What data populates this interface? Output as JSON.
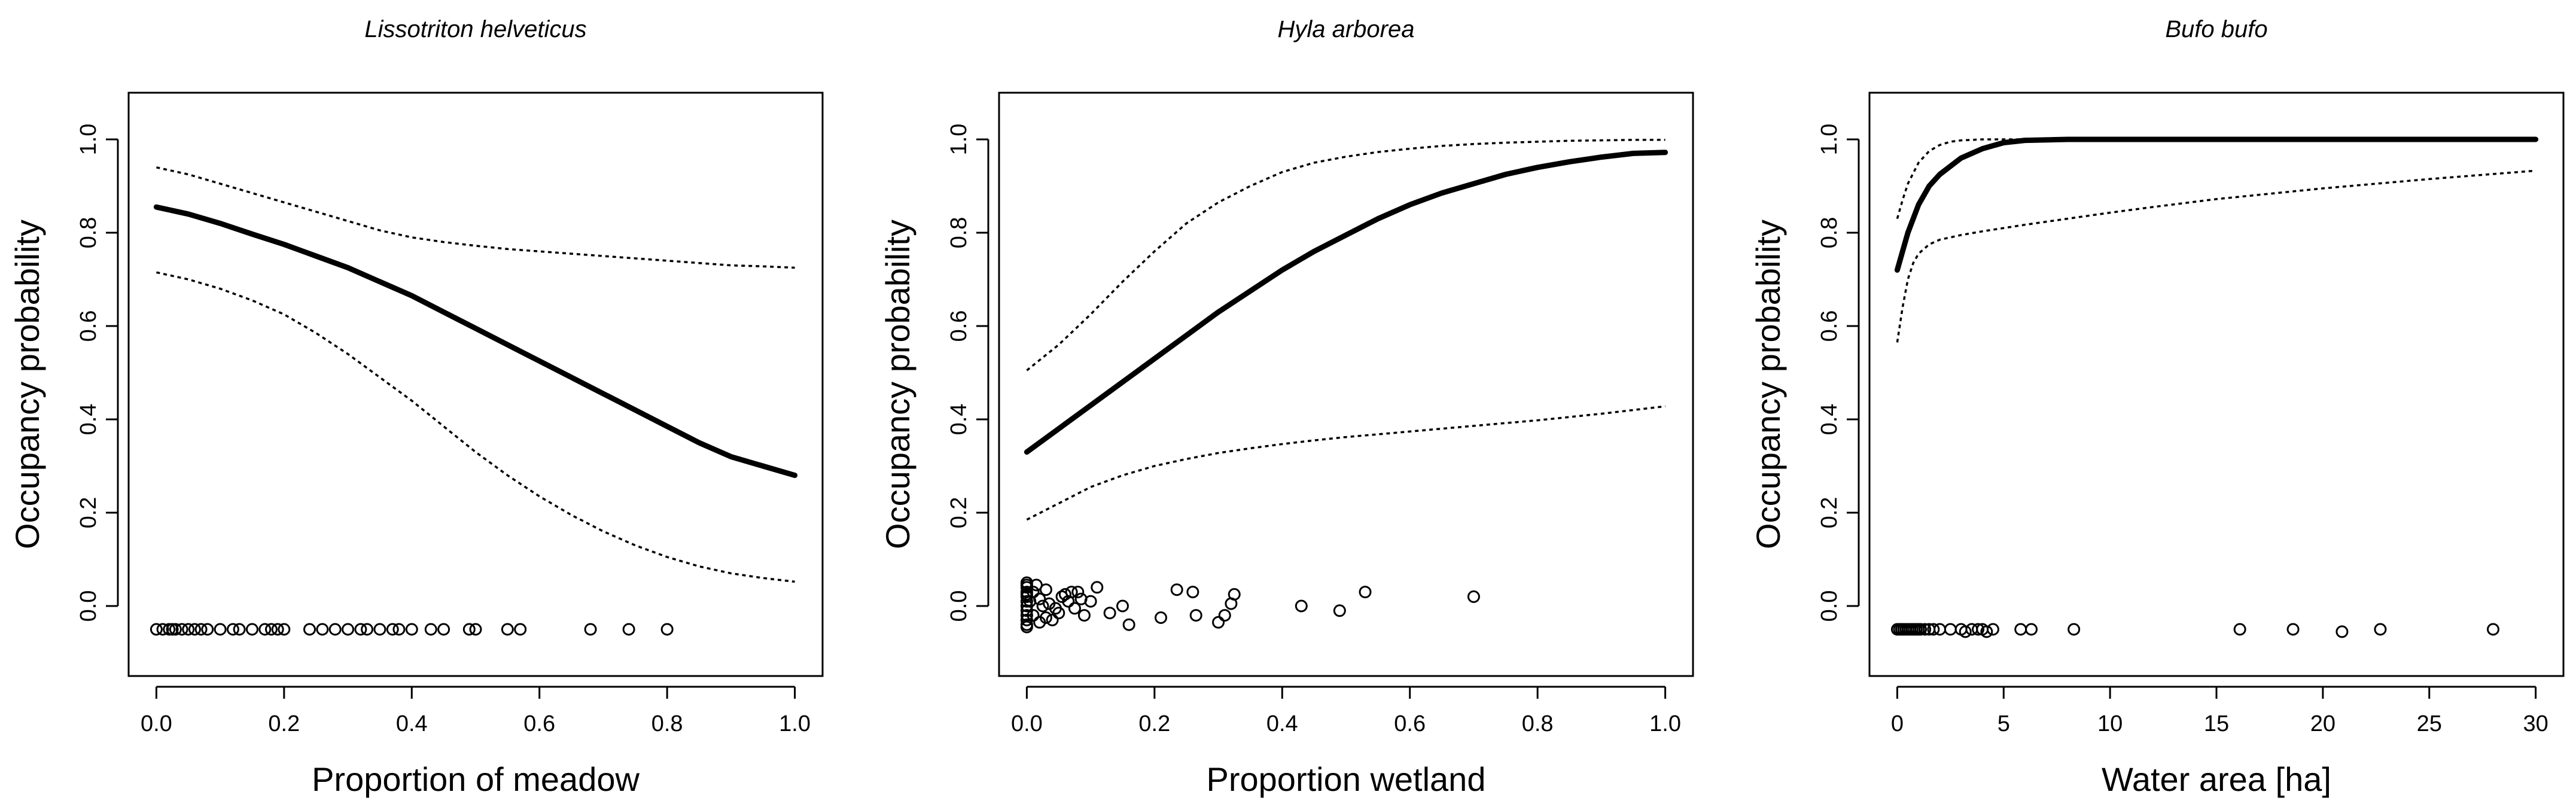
{
  "chart_data": [
    {
      "type": "line",
      "title": "Lissotriton helveticus",
      "xlabel": "Proportion of meadow",
      "ylabel": "Occupancy probability",
      "xlim": [
        0,
        1
      ],
      "ylim": [
        -0.1,
        1.05
      ],
      "xticks": [
        0,
        0.2,
        0.4,
        0.6,
        0.8,
        1
      ],
      "xtick_labels": [
        "0.0",
        "0.2",
        "0.4",
        "0.6",
        "0.8",
        "1.0"
      ],
      "yticks": [
        0,
        0.2,
        0.4,
        0.6,
        0.8,
        1
      ],
      "ytick_labels": [
        "0.0",
        "0.2",
        "0.4",
        "0.6",
        "0.8",
        "1.0"
      ],
      "series": [
        {
          "name": "fit",
          "style": "solid",
          "x": [
            0,
            0.05,
            0.1,
            0.15,
            0.2,
            0.25,
            0.3,
            0.35,
            0.4,
            0.45,
            0.5,
            0.55,
            0.6,
            0.65,
            0.7,
            0.75,
            0.8,
            0.85,
            0.9,
            0.95,
            1
          ],
          "y": [
            0.855,
            0.84,
            0.82,
            0.797,
            0.775,
            0.75,
            0.725,
            0.695,
            0.665,
            0.63,
            0.595,
            0.56,
            0.525,
            0.49,
            0.455,
            0.42,
            0.385,
            0.35,
            0.32,
            0.3,
            0.28
          ]
        },
        {
          "name": "upper 95% CI",
          "style": "dotted",
          "x": [
            0,
            0.05,
            0.1,
            0.15,
            0.2,
            0.25,
            0.3,
            0.35,
            0.4,
            0.45,
            0.5,
            0.55,
            0.6,
            0.65,
            0.7,
            0.75,
            0.8,
            0.85,
            0.9,
            0.95,
            1
          ],
          "y": [
            0.94,
            0.925,
            0.905,
            0.885,
            0.865,
            0.845,
            0.825,
            0.805,
            0.79,
            0.78,
            0.772,
            0.765,
            0.76,
            0.755,
            0.75,
            0.745,
            0.74,
            0.735,
            0.73,
            0.728,
            0.725
          ]
        },
        {
          "name": "lower 95% CI",
          "style": "dotted",
          "x": [
            0,
            0.05,
            0.1,
            0.15,
            0.2,
            0.25,
            0.3,
            0.35,
            0.4,
            0.45,
            0.5,
            0.55,
            0.6,
            0.65,
            0.7,
            0.75,
            0.8,
            0.85,
            0.9,
            0.95,
            1
          ],
          "y": [
            0.715,
            0.7,
            0.68,
            0.655,
            0.625,
            0.585,
            0.54,
            0.49,
            0.44,
            0.385,
            0.33,
            0.28,
            0.235,
            0.195,
            0.16,
            0.13,
            0.105,
            0.085,
            0.07,
            0.06,
            0.052
          ]
        }
      ],
      "points": {
        "name": "observations",
        "x": [
          0,
          0.01,
          0.02,
          0.025,
          0.03,
          0.04,
          0.05,
          0.06,
          0.07,
          0.08,
          0.1,
          0.12,
          0.13,
          0.15,
          0.17,
          0.18,
          0.19,
          0.2,
          0.24,
          0.26,
          0.28,
          0.3,
          0.32,
          0.33,
          0.35,
          0.37,
          0.38,
          0.4,
          0.43,
          0.45,
          0.49,
          0.5,
          0.55,
          0.57,
          0.68,
          0.74,
          0.8
        ],
        "y": [
          -0.05,
          -0.05,
          -0.05,
          -0.05,
          -0.05,
          -0.05,
          -0.05,
          -0.05,
          -0.05,
          -0.05,
          -0.05,
          -0.05,
          -0.05,
          -0.05,
          -0.05,
          -0.05,
          -0.05,
          -0.05,
          -0.05,
          -0.05,
          -0.05,
          -0.05,
          -0.05,
          -0.05,
          -0.05,
          -0.05,
          -0.05,
          -0.05,
          -0.05,
          -0.05,
          -0.05,
          -0.05,
          -0.05,
          -0.05,
          -0.05,
          -0.05,
          -0.05
        ]
      }
    },
    {
      "type": "line",
      "title": "Hyla arborea",
      "xlabel": "Proportion wetland",
      "ylabel": "Occupancy probability",
      "xlim": [
        0,
        1
      ],
      "ylim": [
        -0.1,
        1.05
      ],
      "xticks": [
        0,
        0.2,
        0.4,
        0.6,
        0.8,
        1
      ],
      "xtick_labels": [
        "0.0",
        "0.2",
        "0.4",
        "0.6",
        "0.8",
        "1.0"
      ],
      "yticks": [
        0,
        0.2,
        0.4,
        0.6,
        0.8,
        1
      ],
      "ytick_labels": [
        "0.0",
        "0.2",
        "0.4",
        "0.6",
        "0.8",
        "1.0"
      ],
      "series": [
        {
          "name": "fit",
          "style": "solid",
          "x": [
            0,
            0.05,
            0.1,
            0.15,
            0.2,
            0.25,
            0.3,
            0.35,
            0.4,
            0.45,
            0.5,
            0.55,
            0.6,
            0.65,
            0.7,
            0.75,
            0.8,
            0.85,
            0.9,
            0.95,
            1
          ],
          "y": [
            0.33,
            0.38,
            0.43,
            0.48,
            0.53,
            0.58,
            0.63,
            0.675,
            0.72,
            0.76,
            0.795,
            0.83,
            0.86,
            0.885,
            0.905,
            0.925,
            0.94,
            0.952,
            0.962,
            0.97,
            0.972
          ]
        },
        {
          "name": "upper 95% CI",
          "style": "dotted",
          "x": [
            0,
            0.05,
            0.1,
            0.15,
            0.2,
            0.25,
            0.3,
            0.35,
            0.4,
            0.45,
            0.5,
            0.55,
            0.6,
            0.65,
            0.7,
            0.75,
            0.8,
            0.85,
            0.9,
            0.95,
            1
          ],
          "y": [
            0.505,
            0.56,
            0.625,
            0.695,
            0.76,
            0.82,
            0.865,
            0.9,
            0.93,
            0.95,
            0.963,
            0.973,
            0.98,
            0.986,
            0.99,
            0.993,
            0.995,
            0.997,
            0.998,
            0.999,
            0.999
          ]
        },
        {
          "name": "lower 95% CI",
          "style": "dotted",
          "x": [
            0,
            0.05,
            0.1,
            0.15,
            0.2,
            0.25,
            0.3,
            0.35,
            0.4,
            0.45,
            0.5,
            0.55,
            0.6,
            0.65,
            0.7,
            0.75,
            0.8,
            0.85,
            0.9,
            0.95,
            1
          ],
          "y": [
            0.185,
            0.22,
            0.255,
            0.28,
            0.3,
            0.315,
            0.328,
            0.338,
            0.347,
            0.355,
            0.362,
            0.368,
            0.374,
            0.38,
            0.386,
            0.392,
            0.398,
            0.405,
            0.412,
            0.42,
            0.428
          ]
        }
      ],
      "points": {
        "name": "observations",
        "x": [
          0,
          0,
          0,
          0,
          0,
          0,
          0,
          0,
          0,
          0,
          0,
          0,
          0,
          0.005,
          0.01,
          0.01,
          0.015,
          0.02,
          0.02,
          0.025,
          0.03,
          0.03,
          0.035,
          0.04,
          0.045,
          0.05,
          0.055,
          0.06,
          0.065,
          0.07,
          0.075,
          0.08,
          0.085,
          0.09,
          0.1,
          0.11,
          0.13,
          0.15,
          0.16,
          0.21,
          0.235,
          0.26,
          0.265,
          0.3,
          0.31,
          0.32,
          0.325,
          0.43,
          0.49,
          0.53,
          0.7
        ],
        "y": [
          0.05,
          0.04,
          0.03,
          0.02,
          0.01,
          0,
          -0.01,
          -0.02,
          -0.03,
          -0.04,
          0.045,
          -0.045,
          0.025,
          0.01,
          -0.02,
          0.03,
          0.045,
          -0.035,
          0.015,
          0,
          -0.025,
          0.035,
          0.005,
          -0.03,
          -0.005,
          -0.015,
          0.02,
          0.025,
          0.01,
          0.03,
          -0.005,
          0.03,
          0.015,
          -0.02,
          0.01,
          0.04,
          -0.015,
          0,
          -0.04,
          -0.025,
          0.035,
          0.03,
          -0.02,
          -0.035,
          -0.02,
          0.005,
          0.025,
          0,
          -0.01,
          0.03,
          0.02
        ]
      }
    },
    {
      "type": "line",
      "title": "Bufo bufo",
      "xlabel": "Water area [ha]",
      "ylabel": "Occupancy probability",
      "xlim": [
        0,
        30
      ],
      "ylim": [
        -0.1,
        1.05
      ],
      "xticks": [
        0,
        5,
        10,
        15,
        20,
        25,
        30
      ],
      "xtick_labels": [
        "0",
        "5",
        "10",
        "15",
        "20",
        "25",
        "30"
      ],
      "yticks": [
        0,
        0.2,
        0.4,
        0.6,
        0.8,
        1
      ],
      "ytick_labels": [
        "0.0",
        "0.2",
        "0.4",
        "0.6",
        "0.8",
        "1.0"
      ],
      "series": [
        {
          "name": "fit",
          "style": "solid",
          "x": [
            0,
            0.25,
            0.5,
            1,
            1.5,
            2,
            3,
            4,
            5,
            6,
            8,
            10,
            15,
            20,
            25,
            30
          ],
          "y": [
            0.72,
            0.76,
            0.8,
            0.86,
            0.9,
            0.925,
            0.96,
            0.98,
            0.993,
            0.998,
            1,
            1,
            1,
            1,
            1,
            1
          ]
        },
        {
          "name": "upper 95% CI",
          "style": "dotted",
          "x": [
            0,
            0.25,
            0.5,
            1,
            1.5,
            2,
            2.5,
            3,
            4,
            5,
            6,
            8,
            10,
            15,
            20,
            25,
            30
          ],
          "y": [
            0.83,
            0.87,
            0.905,
            0.95,
            0.975,
            0.988,
            0.995,
            0.998,
            1,
            1,
            1,
            1,
            1,
            1,
            1,
            1,
            1
          ]
        },
        {
          "name": "lower 95% CI",
          "style": "dotted",
          "x": [
            0,
            0.25,
            0.5,
            0.75,
            1,
            1.5,
            2,
            3,
            4,
            5,
            6,
            8,
            10,
            12,
            15,
            20,
            25,
            30
          ],
          "y": [
            0.565,
            0.64,
            0.7,
            0.735,
            0.755,
            0.775,
            0.785,
            0.795,
            0.803,
            0.81,
            0.817,
            0.83,
            0.843,
            0.855,
            0.872,
            0.895,
            0.915,
            0.933
          ]
        }
      ],
      "points": {
        "name": "observations",
        "x": [
          0,
          0.1,
          0.2,
          0.3,
          0.4,
          0.5,
          0.6,
          0.7,
          0.8,
          0.9,
          1,
          1.1,
          1.3,
          1.5,
          1.7,
          2,
          2.5,
          3,
          3.2,
          3.5,
          3.8,
          4,
          4.2,
          4.5,
          5.8,
          6.3,
          8.3,
          16.1,
          18.6,
          20.9,
          22.7,
          28
        ],
        "y": [
          -0.05,
          -0.05,
          -0.05,
          -0.05,
          -0.05,
          -0.05,
          -0.05,
          -0.05,
          -0.05,
          -0.05,
          -0.05,
          -0.05,
          -0.05,
          -0.05,
          -0.05,
          -0.05,
          -0.05,
          -0.05,
          -0.055,
          -0.05,
          -0.05,
          -0.05,
          -0.055,
          -0.05,
          -0.05,
          -0.05,
          -0.05,
          -0.05,
          -0.05,
          -0.055,
          -0.05,
          -0.05
        ]
      }
    }
  ]
}
